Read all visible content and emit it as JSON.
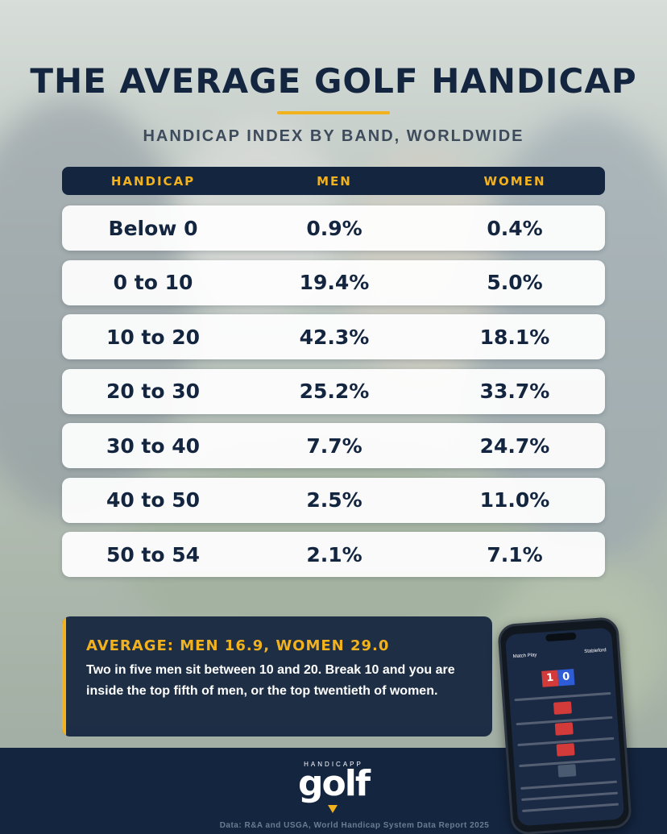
{
  "header": {
    "title": "THE AVERAGE GOLF HANDICAP",
    "subtitle": "HANDICAP INDEX BY BAND, WORLDWIDE"
  },
  "table": {
    "columns": [
      "HANDICAP",
      "MEN",
      "WOMEN"
    ],
    "rows": [
      {
        "band": "Below 0",
        "men": "0.9%",
        "women": "0.4%"
      },
      {
        "band": "0 to 10",
        "men": "19.4%",
        "women": "5.0%"
      },
      {
        "band": "10 to 20",
        "men": "42.3%",
        "women": "18.1%"
      },
      {
        "band": "20 to 30",
        "men": "25.2%",
        "women": "33.7%"
      },
      {
        "band": "30 to 40",
        "men": "7.7%",
        "women": "24.7%"
      },
      {
        "band": "40 to 50",
        "men": "2.5%",
        "women": "11.0%"
      },
      {
        "band": "50 to 54",
        "men": "2.1%",
        "women": "7.1%"
      }
    ]
  },
  "callout": {
    "heading": "AVERAGE: MEN 16.9, WOMEN 29.0",
    "body": "Two in five men sit between 10 and 20. Break 10 and you are inside the top fifth of men, or the top twentieth of women."
  },
  "footer": {
    "logo_small": "HANDICAPP",
    "logo_big": "golf",
    "source": "Data: R&A and USGA, World Handicap System Data Report 2025"
  },
  "phone": {
    "tab_left": "Match Play",
    "tab_right": "Stableford",
    "score_left": "1",
    "score_right": "0"
  },
  "colors": {
    "navy": "#14253f",
    "gold": "#f2b21e",
    "row_bg": "#ffffff"
  }
}
